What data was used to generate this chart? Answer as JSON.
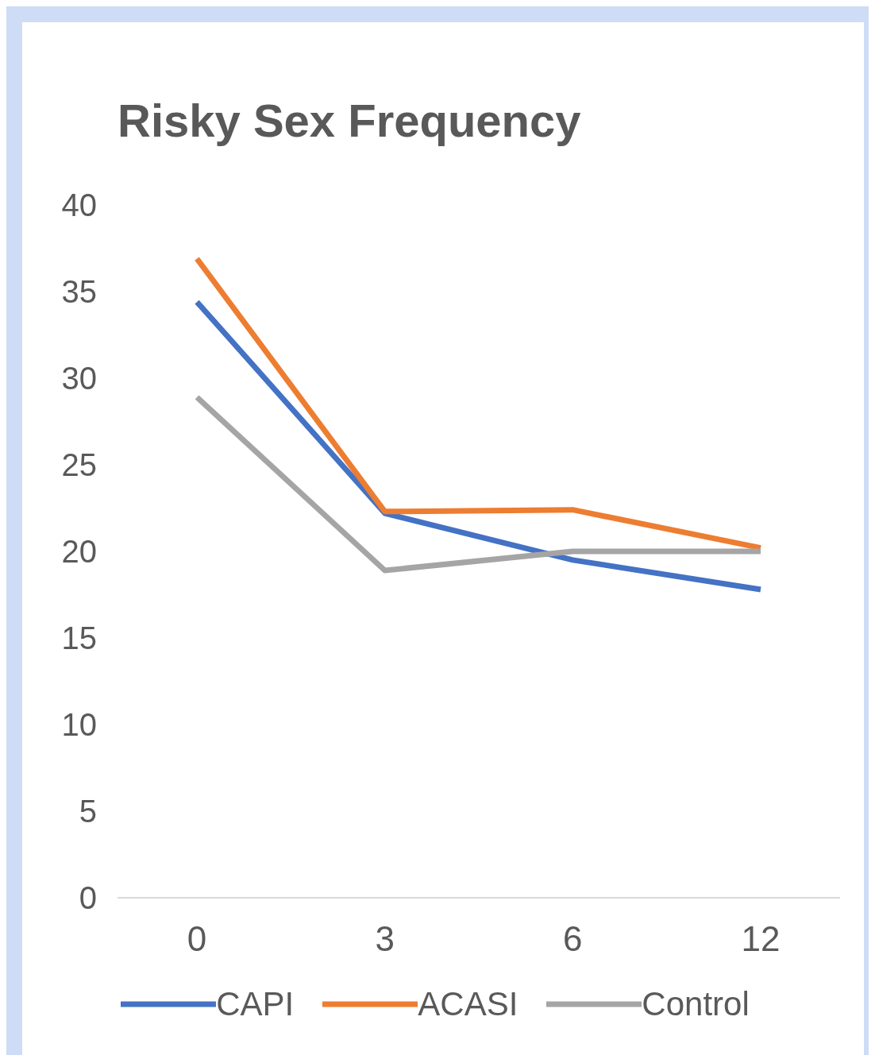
{
  "chart_data": {
    "type": "line",
    "title": "Risky Sex Frequency",
    "categories": [
      "0",
      "3",
      "6",
      "12"
    ],
    "series": [
      {
        "name": "CAPI",
        "color": "#4472c4",
        "values": [
          34.4,
          22.2,
          19.5,
          17.8
        ]
      },
      {
        "name": "ACASI",
        "color": "#ed7d31",
        "values": [
          36.9,
          22.3,
          22.4,
          20.2
        ]
      },
      {
        "name": "Control",
        "color": "#a5a5a5",
        "values": [
          28.9,
          18.9,
          20.0,
          20.0
        ]
      }
    ],
    "ylim": [
      0,
      40
    ],
    "yticks": [
      0,
      5,
      10,
      15,
      20,
      25,
      30,
      35,
      40
    ],
    "legend": "bottom",
    "marker": "none",
    "line_style": "solid"
  }
}
